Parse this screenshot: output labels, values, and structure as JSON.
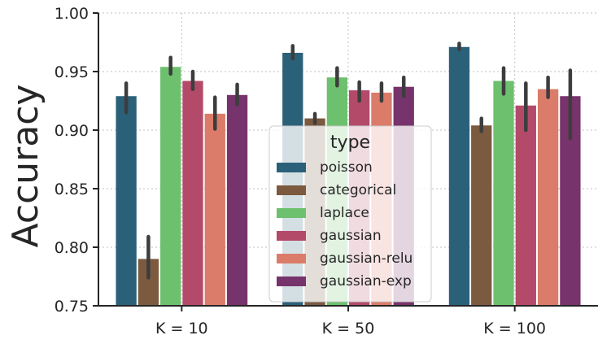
{
  "chart_data": {
    "type": "bar",
    "title": "",
    "xlabel": "",
    "ylabel": "Accuracy",
    "ylim": [
      0.75,
      1.0
    ],
    "yticks": [
      "0.75",
      "0.80",
      "0.85",
      "0.90",
      "0.95",
      "1.00"
    ],
    "grid": true,
    "legend": {
      "title": "type",
      "placement": "center"
    },
    "categories": [
      "K = 10",
      "K = 50",
      "K = 100"
    ],
    "series": [
      {
        "name": "poisson",
        "color": "#2b6079",
        "values": [
          0.929,
          0.966,
          0.971
        ],
        "err_low": [
          0.915,
          0.961,
          0.969
        ],
        "err_high": [
          0.94,
          0.972,
          0.974
        ]
      },
      {
        "name": "categorical",
        "color": "#7b5a40",
        "values": [
          0.79,
          0.91,
          0.904
        ],
        "err_low": [
          0.774,
          0.906,
          0.899
        ],
        "err_high": [
          0.809,
          0.914,
          0.91
        ]
      },
      {
        "name": "laplace",
        "color": "#6dc06e",
        "values": [
          0.954,
          0.945,
          0.942
        ],
        "err_low": [
          0.948,
          0.938,
          0.931
        ],
        "err_high": [
          0.962,
          0.953,
          0.953
        ]
      },
      {
        "name": "gaussian",
        "color": "#b44a6a",
        "values": [
          0.942,
          0.934,
          0.921
        ],
        "err_low": [
          0.935,
          0.925,
          0.9
        ],
        "err_high": [
          0.95,
          0.941,
          0.94
        ]
      },
      {
        "name": "gaussian-relu",
        "color": "#db7b6a",
        "values": [
          0.914,
          0.932,
          0.935
        ],
        "err_low": [
          0.901,
          0.925,
          0.928
        ],
        "err_high": [
          0.928,
          0.94,
          0.945
        ]
      },
      {
        "name": "gaussian-exp",
        "color": "#77336b",
        "values": [
          0.93,
          0.937,
          0.929
        ],
        "err_low": [
          0.922,
          0.929,
          0.893
        ],
        "err_high": [
          0.939,
          0.945,
          0.951
        ]
      }
    ]
  }
}
